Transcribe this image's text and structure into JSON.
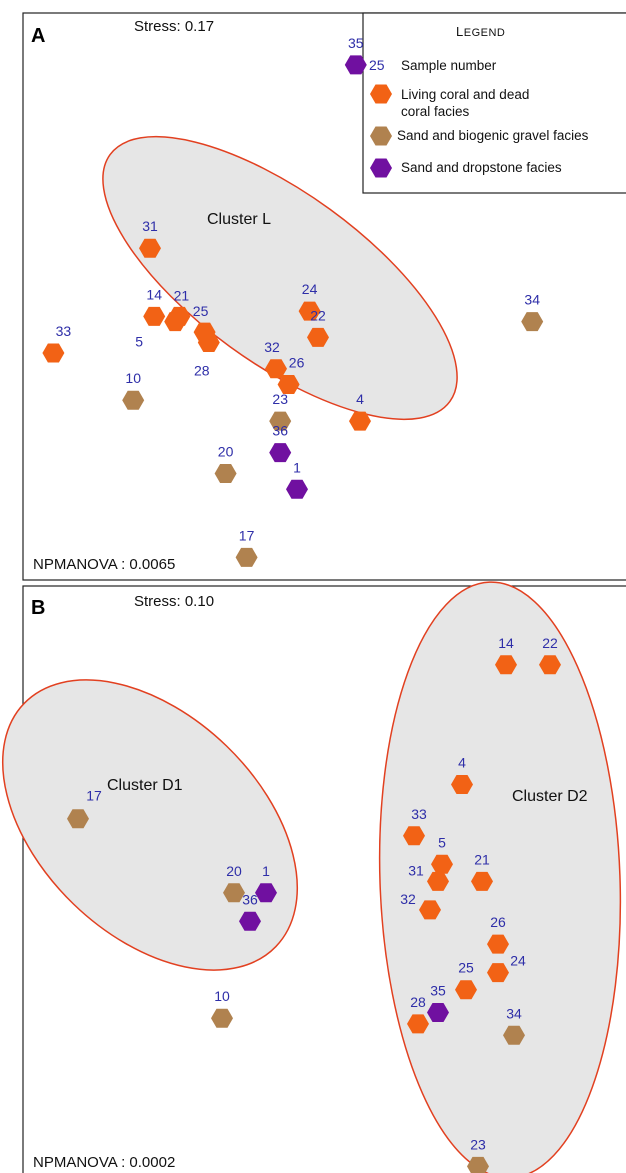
{
  "colors": {
    "living_coral": "#f26215",
    "sand_gravel": "#b0824f",
    "sand_dropstone": "#7010a0",
    "sample_number": "#2e2ea8",
    "ellipse_stroke": "#e24020",
    "ellipse_fill": "#e6e6e6"
  },
  "legend": {
    "title": "Legend",
    "number_sample": "25",
    "number_label": "Sample number",
    "living_coral": "Living coral and dead coral facies",
    "sand_gravel": "Sand and biogenic gravel facies",
    "sand_dropstone": "Sand and dropstone facies"
  },
  "chart_data": [
    {
      "type": "scatter",
      "panel": "A",
      "stress": "Stress: 0.17",
      "npmanova": "NPMANOVA : 0.0065",
      "cluster_labels": [
        "Cluster L"
      ],
      "marker": "hexagon",
      "points": [
        {
          "id": "35",
          "facies": "sand_dropstone",
          "x": 0.24,
          "y": 0.84
        },
        {
          "id": "31",
          "facies": "living_coral",
          "x": -0.25,
          "y": 0.49
        },
        {
          "id": "14",
          "facies": "living_coral",
          "x": -0.24,
          "y": 0.36
        },
        {
          "id": "21",
          "facies": "living_coral",
          "x": -0.18,
          "y": 0.36
        },
        {
          "id": "5",
          "facies": "living_coral",
          "x": -0.19,
          "y": 0.35
        },
        {
          "id": "25",
          "facies": "living_coral",
          "x": -0.12,
          "y": 0.33
        },
        {
          "id": "28",
          "facies": "living_coral",
          "x": -0.11,
          "y": 0.31
        },
        {
          "id": "24",
          "facies": "living_coral",
          "x": 0.13,
          "y": 0.37
        },
        {
          "id": "22",
          "facies": "living_coral",
          "x": 0.15,
          "y": 0.32
        },
        {
          "id": "34",
          "facies": "sand_gravel",
          "x": 0.66,
          "y": 0.35
        },
        {
          "id": "33",
          "facies": "living_coral",
          "x": -0.48,
          "y": 0.29
        },
        {
          "id": "32",
          "facies": "living_coral",
          "x": 0.05,
          "y": 0.26
        },
        {
          "id": "26",
          "facies": "living_coral",
          "x": 0.08,
          "y": 0.23
        },
        {
          "id": "10",
          "facies": "sand_gravel",
          "x": -0.29,
          "y": 0.2
        },
        {
          "id": "23",
          "facies": "sand_gravel",
          "x": 0.06,
          "y": 0.16
        },
        {
          "id": "4",
          "facies": "living_coral",
          "x": 0.25,
          "y": 0.16
        },
        {
          "id": "36",
          "facies": "sand_dropstone",
          "x": 0.06,
          "y": 0.1
        },
        {
          "id": "20",
          "facies": "sand_gravel",
          "x": -0.07,
          "y": 0.06
        },
        {
          "id": "1",
          "facies": "sand_dropstone",
          "x": 0.1,
          "y": 0.03
        },
        {
          "id": "17",
          "facies": "sand_gravel",
          "x": -0.02,
          "y": -0.1
        }
      ]
    },
    {
      "type": "scatter",
      "panel": "B",
      "stress": "Stress: 0.10",
      "npmanova": "NPMANOVA : 0.0002",
      "cluster_labels": [
        "Cluster D1",
        "Cluster D2"
      ],
      "marker": "hexagon",
      "points": [
        {
          "id": "14",
          "facies": "living_coral",
          "x": 0.54,
          "y": 0.86
        },
        {
          "id": "22",
          "facies": "living_coral",
          "x": 0.65,
          "y": 0.86
        },
        {
          "id": "4",
          "facies": "living_coral",
          "x": 0.43,
          "y": 0.65
        },
        {
          "id": "17",
          "facies": "sand_gravel",
          "x": -0.53,
          "y": 0.59
        },
        {
          "id": "33",
          "facies": "living_coral",
          "x": 0.31,
          "y": 0.56
        },
        {
          "id": "5",
          "facies": "living_coral",
          "x": 0.38,
          "y": 0.51
        },
        {
          "id": "31",
          "facies": "living_coral",
          "x": 0.37,
          "y": 0.48
        },
        {
          "id": "21",
          "facies": "living_coral",
          "x": 0.48,
          "y": 0.48
        },
        {
          "id": "20",
          "facies": "sand_gravel",
          "x": -0.14,
          "y": 0.46
        },
        {
          "id": "1",
          "facies": "sand_dropstone",
          "x": -0.06,
          "y": 0.46
        },
        {
          "id": "32",
          "facies": "living_coral",
          "x": 0.35,
          "y": 0.43
        },
        {
          "id": "36",
          "facies": "sand_dropstone",
          "x": -0.1,
          "y": 0.41
        },
        {
          "id": "26",
          "facies": "living_coral",
          "x": 0.52,
          "y": 0.37
        },
        {
          "id": "24",
          "facies": "living_coral",
          "x": 0.52,
          "y": 0.32
        },
        {
          "id": "25",
          "facies": "living_coral",
          "x": 0.44,
          "y": 0.29
        },
        {
          "id": "10",
          "facies": "sand_gravel",
          "x": -0.17,
          "y": 0.24
        },
        {
          "id": "35",
          "facies": "sand_dropstone",
          "x": 0.37,
          "y": 0.25
        },
        {
          "id": "28",
          "facies": "living_coral",
          "x": 0.32,
          "y": 0.23
        },
        {
          "id": "34",
          "facies": "sand_gravel",
          "x": 0.56,
          "y": 0.21
        },
        {
          "id": "23",
          "facies": "sand_gravel",
          "x": 0.47,
          "y": -0.02
        }
      ]
    }
  ]
}
